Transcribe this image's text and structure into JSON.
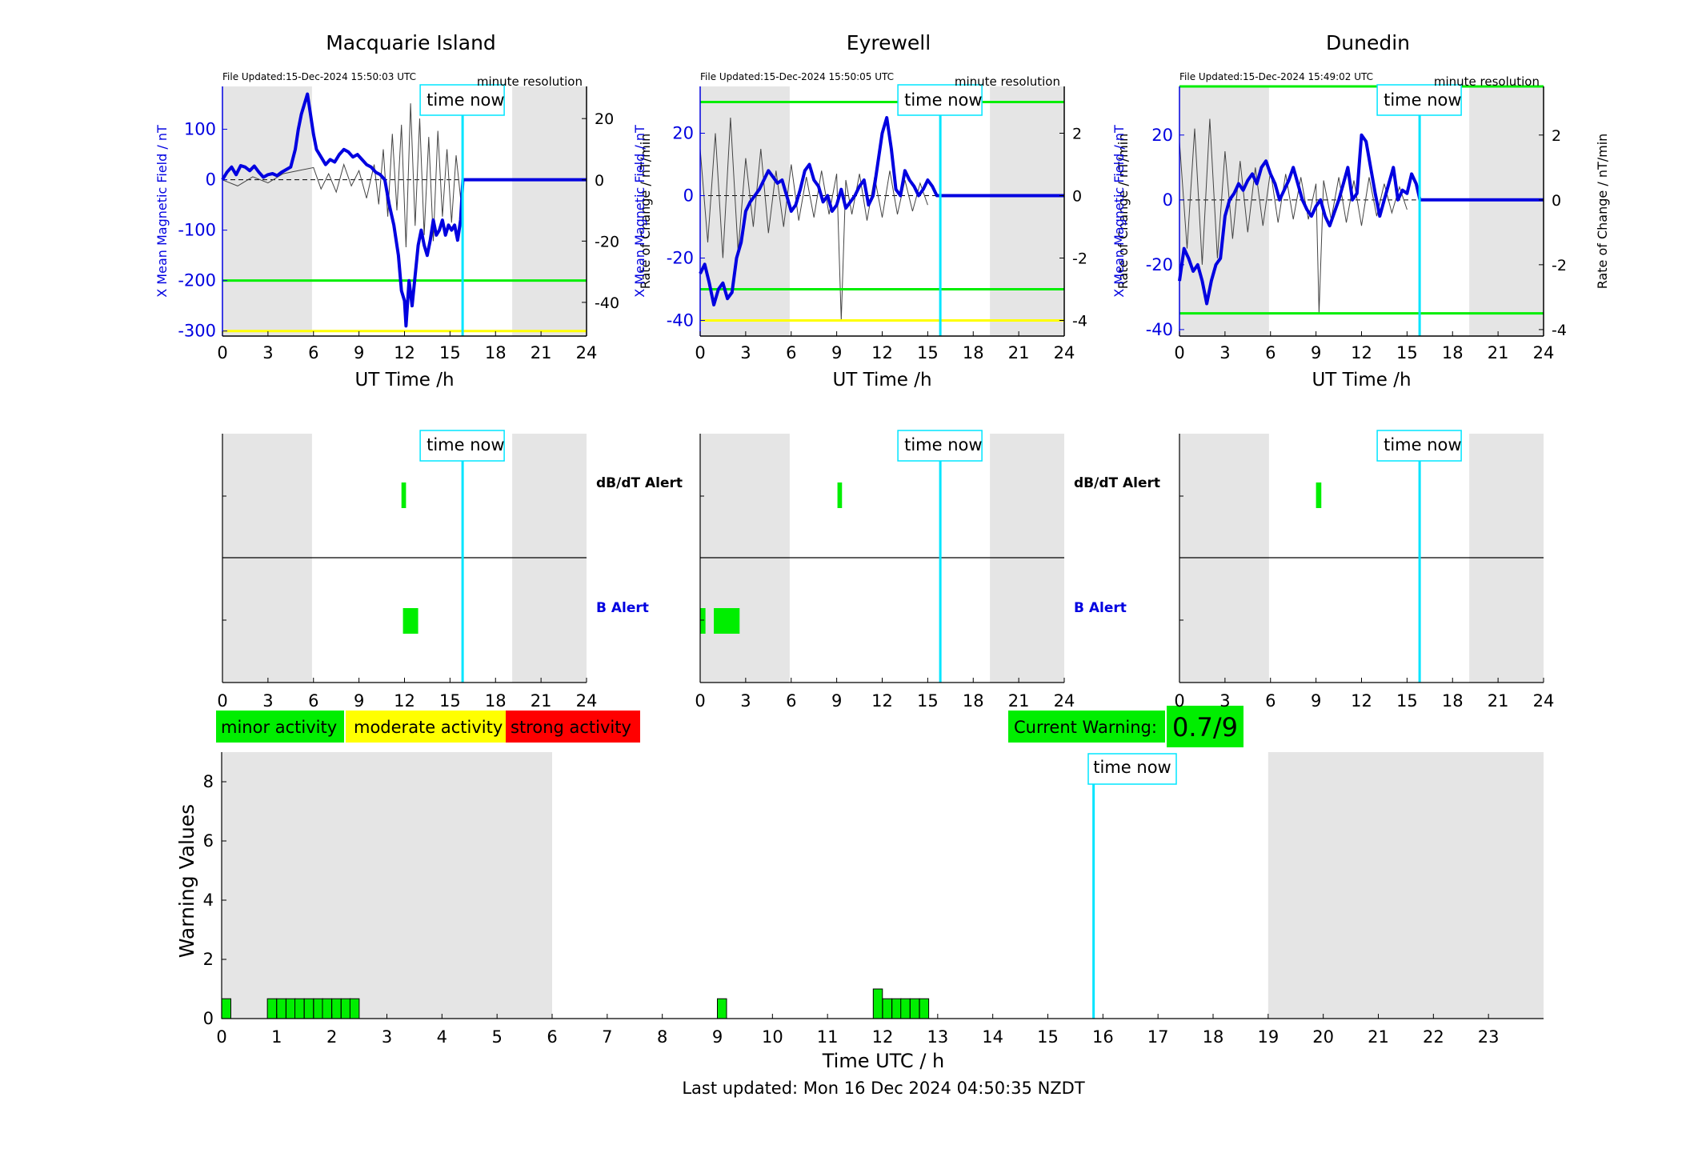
{
  "common": {
    "time_now_label": "time now",
    "time_now_h": 15.83,
    "resolution_label": "minute resolution",
    "x_axis_label": "UT Time /h",
    "left_axis_label": "X Mean Magnetic Field / nT",
    "right_axis_label": "Rate of Change / nT/min",
    "dbdt_alert_label": "dB/dT Alert",
    "b_alert_label": "B Alert",
    "x_ticks": [
      0,
      3,
      6,
      9,
      12,
      15,
      18,
      21,
      24
    ],
    "night_shading_h": [
      [
        0,
        5.9
      ],
      [
        19.1,
        24
      ]
    ]
  },
  "colors": {
    "field_line": "#0000e0",
    "rate_line": "#444444",
    "time_now": "#00e5ff",
    "threshold_minor": "#00ee00",
    "threshold_moderate": "#ffff00",
    "threshold_strong": "#ff0000",
    "night_shade": "#e5e5e5",
    "alert_bar": "#00ee00"
  },
  "legend": {
    "minor": "minor activity",
    "moderate": "moderate activity",
    "strong": "strong activity"
  },
  "current_warning": {
    "label": "Current Warning:",
    "value": "0.7/9"
  },
  "footer": {
    "last_updated": "Last updated: Mon 16 Dec 2024 04:50:35 NZDT"
  },
  "chart_data": [
    {
      "type": "line",
      "title": "Macquarie Island",
      "file_updated": "File Updated:15-Dec-2024 15:50:03 UTC",
      "xlim": [
        0,
        24
      ],
      "ylim_left": [
        -310,
        185
      ],
      "ylim_right": [
        -51,
        30.5
      ],
      "y_ticks_left": [
        100,
        0,
        -100,
        -200,
        -300
      ],
      "y_ticks_right": [
        20,
        0,
        -20,
        -40
      ],
      "thresholds": [
        {
          "level": "minor",
          "y": -200
        },
        {
          "level": "moderate",
          "y": -300
        }
      ],
      "field_series": {
        "x": [
          0,
          0.3,
          0.6,
          0.9,
          1.2,
          1.5,
          1.8,
          2.1,
          2.4,
          2.7,
          3,
          3.3,
          3.6,
          3.9,
          4.2,
          4.5,
          4.8,
          5.0,
          5.2,
          5.4,
          5.6,
          5.8,
          6.0,
          6.2,
          6.5,
          6.8,
          7.1,
          7.4,
          7.7,
          8.0,
          8.3,
          8.6,
          8.9,
          9.2,
          9.5,
          9.8,
          10.1,
          10.4,
          10.7,
          11.0,
          11.3,
          11.6,
          11.8,
          12.0,
          12.1,
          12.3,
          12.5,
          12.7,
          12.9,
          13.1,
          13.3,
          13.5,
          13.7,
          13.9,
          14.1,
          14.3,
          14.5,
          14.7,
          14.9,
          15.1,
          15.3,
          15.5,
          15.7,
          15.85,
          24
        ],
        "y": [
          0,
          15,
          25,
          10,
          28,
          25,
          18,
          27,
          15,
          5,
          10,
          12,
          8,
          15,
          20,
          25,
          60,
          100,
          130,
          150,
          170,
          130,
          90,
          60,
          45,
          30,
          40,
          35,
          50,
          60,
          55,
          45,
          50,
          40,
          30,
          25,
          15,
          10,
          0,
          -50,
          -90,
          -150,
          -220,
          -240,
          -290,
          -200,
          -250,
          -190,
          -130,
          -100,
          -130,
          -150,
          -120,
          -80,
          -110,
          -100,
          -80,
          -110,
          -90,
          -100,
          -90,
          -120,
          -80,
          0,
          0
        ]
      },
      "rate_series": {
        "x": [
          0,
          1,
          2,
          3,
          4,
          5,
          6,
          6.5,
          7,
          7.5,
          8,
          8.5,
          9,
          9.5,
          10,
          10.3,
          10.6,
          10.9,
          11.2,
          11.5,
          11.8,
          12.1,
          12.4,
          12.7,
          13.0,
          13.3,
          13.6,
          13.9,
          14.2,
          14.5,
          14.8,
          15.1,
          15.4,
          15.7
        ],
        "y": [
          0,
          -2,
          1,
          -1,
          2,
          3,
          4,
          -3,
          2,
          -4,
          5,
          -2,
          3,
          -6,
          5,
          -8,
          10,
          -12,
          15,
          -10,
          18,
          -22,
          25,
          -15,
          20,
          -18,
          14,
          -20,
          16,
          -12,
          10,
          -14,
          8,
          -6
        ]
      },
      "dbdt_alerts": [
        [
          11.8,
          12.1
        ]
      ],
      "b_alerts": [
        [
          11.9,
          12.9
        ]
      ]
    },
    {
      "type": "line",
      "title": "Eyrewell",
      "file_updated": "File Updated:15-Dec-2024 15:50:05 UTC",
      "xlim": [
        0,
        24
      ],
      "ylim_left": [
        -45,
        35
      ],
      "ylim_right": [
        -4.5,
        3.5
      ],
      "y_ticks_left": [
        20,
        0,
        -20,
        -40
      ],
      "y_ticks_right": [
        2,
        0,
        -2,
        -4
      ],
      "thresholds": [
        {
          "level": "minor",
          "y": 30
        },
        {
          "level": "minor",
          "y": -30
        },
        {
          "level": "moderate",
          "y": -40
        }
      ],
      "field_series": {
        "x": [
          0,
          0.3,
          0.6,
          0.9,
          1.2,
          1.5,
          1.8,
          2.1,
          2.4,
          2.7,
          3.0,
          3.3,
          3.6,
          3.9,
          4.2,
          4.5,
          4.8,
          5.1,
          5.4,
          5.7,
          6.0,
          6.3,
          6.6,
          6.9,
          7.2,
          7.5,
          7.8,
          8.1,
          8.4,
          8.7,
          9.0,
          9.3,
          9.6,
          9.9,
          10.2,
          10.5,
          10.8,
          11.1,
          11.4,
          11.7,
          12.0,
          12.3,
          12.6,
          12.9,
          13.2,
          13.5,
          13.8,
          14.1,
          14.4,
          14.7,
          15.0,
          15.3,
          15.6,
          15.85,
          24
        ],
        "y": [
          -25,
          -22,
          -28,
          -35,
          -30,
          -28,
          -33,
          -31,
          -20,
          -15,
          -5,
          -2,
          0,
          2,
          5,
          8,
          6,
          4,
          5,
          0,
          -5,
          -3,
          2,
          8,
          10,
          5,
          3,
          -2,
          0,
          -5,
          -3,
          2,
          -4,
          -2,
          0,
          3,
          5,
          -3,
          0,
          10,
          20,
          25,
          15,
          2,
          0,
          8,
          5,
          3,
          0,
          2,
          5,
          3,
          0,
          0,
          0
        ]
      },
      "rate_series": {
        "x": [
          0,
          0.5,
          1,
          1.5,
          2,
          2.5,
          3,
          3.5,
          4,
          4.5,
          5,
          5.5,
          6,
          6.5,
          7,
          7.5,
          8,
          8.5,
          9,
          9.3,
          9.6,
          10,
          10.5,
          11,
          11.5,
          12,
          12.5,
          13,
          13.5,
          14,
          14.5,
          15
        ],
        "y": [
          1.5,
          -1.5,
          2,
          -2,
          2.5,
          -1.8,
          1.2,
          -1,
          1.5,
          -1.2,
          0.8,
          -1,
          1,
          -0.8,
          0.6,
          -0.7,
          0.8,
          -0.6,
          0.7,
          -4,
          0.5,
          -0.6,
          0.7,
          -0.8,
          0.6,
          -0.7,
          0.8,
          -0.6,
          0.5,
          -0.5,
          0.4,
          -0.3
        ]
      },
      "dbdt_alerts": [
        [
          9.05,
          9.35
        ]
      ],
      "b_alerts": [
        [
          0,
          0.35
        ],
        [
          0.9,
          2.6
        ]
      ]
    },
    {
      "type": "line",
      "title": "Dunedin",
      "file_updated": "File Updated:15-Dec-2024 15:49:02 UTC",
      "xlim": [
        0,
        24
      ],
      "ylim_left": [
        -42,
        35
      ],
      "ylim_right": [
        -4.2,
        3.5
      ],
      "y_ticks_left": [
        20,
        0,
        -20,
        -40
      ],
      "y_ticks_right": [
        2,
        0,
        -2,
        -4
      ],
      "thresholds": [
        {
          "level": "minor",
          "y": 35
        },
        {
          "level": "minor",
          "y": -35
        }
      ],
      "field_series": {
        "x": [
          0,
          0.3,
          0.6,
          0.9,
          1.2,
          1.5,
          1.8,
          2.1,
          2.4,
          2.7,
          3.0,
          3.3,
          3.6,
          3.9,
          4.2,
          4.5,
          4.8,
          5.1,
          5.4,
          5.7,
          6.0,
          6.3,
          6.6,
          6.9,
          7.2,
          7.5,
          7.8,
          8.1,
          8.4,
          8.7,
          9.0,
          9.3,
          9.6,
          9.9,
          10.2,
          10.5,
          10.8,
          11.1,
          11.4,
          11.7,
          12.0,
          12.3,
          12.6,
          12.9,
          13.2,
          13.5,
          13.8,
          14.1,
          14.4,
          14.7,
          15.0,
          15.3,
          15.6,
          15.85,
          24
        ],
        "y": [
          -25,
          -15,
          -18,
          -22,
          -20,
          -25,
          -32,
          -25,
          -20,
          -18,
          -5,
          0,
          2,
          5,
          3,
          6,
          8,
          5,
          10,
          12,
          8,
          5,
          0,
          3,
          6,
          10,
          5,
          0,
          -3,
          -5,
          -2,
          0,
          -5,
          -8,
          -4,
          0,
          5,
          10,
          0,
          2,
          20,
          18,
          10,
          2,
          -5,
          0,
          5,
          10,
          0,
          3,
          2,
          8,
          5,
          0,
          0
        ]
      },
      "rate_series": {
        "x": [
          0,
          0.5,
          1,
          1.5,
          2,
          2.5,
          3,
          3.5,
          4,
          4.5,
          5,
          5.5,
          6,
          6.5,
          7,
          7.5,
          8,
          8.5,
          9,
          9.2,
          9.5,
          10,
          10.5,
          11,
          11.5,
          12,
          12.5,
          13,
          13.5,
          14,
          14.5,
          15
        ],
        "y": [
          1.8,
          -1.5,
          2.2,
          -2,
          2.5,
          -1.8,
          1.5,
          -1.2,
          1.2,
          -1,
          1,
          -0.8,
          0.9,
          -0.7,
          0.8,
          -0.6,
          0.7,
          -0.6,
          0.5,
          -3.5,
          0.6,
          -0.6,
          0.7,
          -0.7,
          0.6,
          -0.8,
          0.7,
          -0.5,
          0.5,
          -0.4,
          0.4,
          -0.3
        ]
      },
      "dbdt_alerts": [
        [
          9.0,
          9.35
        ]
      ],
      "b_alerts": []
    },
    {
      "type": "bar",
      "xlabel": "Time UTC / h",
      "ylabel": "Warning Values",
      "xlim": [
        0,
        24
      ],
      "ylim": [
        0,
        9
      ],
      "x_ticks": [
        0,
        1,
        2,
        3,
        4,
        5,
        6,
        7,
        8,
        9,
        10,
        11,
        12,
        13,
        14,
        15,
        16,
        17,
        18,
        19,
        20,
        21,
        22,
        23
      ],
      "y_ticks": [
        0,
        2,
        4,
        6,
        8
      ],
      "night_shading_h": [
        [
          0,
          6
        ],
        [
          19,
          24
        ]
      ],
      "bars": [
        {
          "x": 0.0,
          "value": 0.67
        },
        {
          "x": 0.83,
          "value": 0.67
        },
        {
          "x": 1.0,
          "value": 0.67
        },
        {
          "x": 1.17,
          "value": 0.67
        },
        {
          "x": 1.33,
          "value": 0.67
        },
        {
          "x": 1.5,
          "value": 0.67
        },
        {
          "x": 1.67,
          "value": 0.67
        },
        {
          "x": 1.83,
          "value": 0.67
        },
        {
          "x": 2.0,
          "value": 0.67
        },
        {
          "x": 2.17,
          "value": 0.67
        },
        {
          "x": 2.33,
          "value": 0.67
        },
        {
          "x": 9.0,
          "value": 0.67
        },
        {
          "x": 11.83,
          "value": 1.0
        },
        {
          "x": 12.0,
          "value": 0.67
        },
        {
          "x": 12.17,
          "value": 0.67
        },
        {
          "x": 12.33,
          "value": 0.67
        },
        {
          "x": 12.5,
          "value": 0.67
        },
        {
          "x": 12.67,
          "value": 0.67
        }
      ],
      "bar_width_h": 0.167
    }
  ]
}
